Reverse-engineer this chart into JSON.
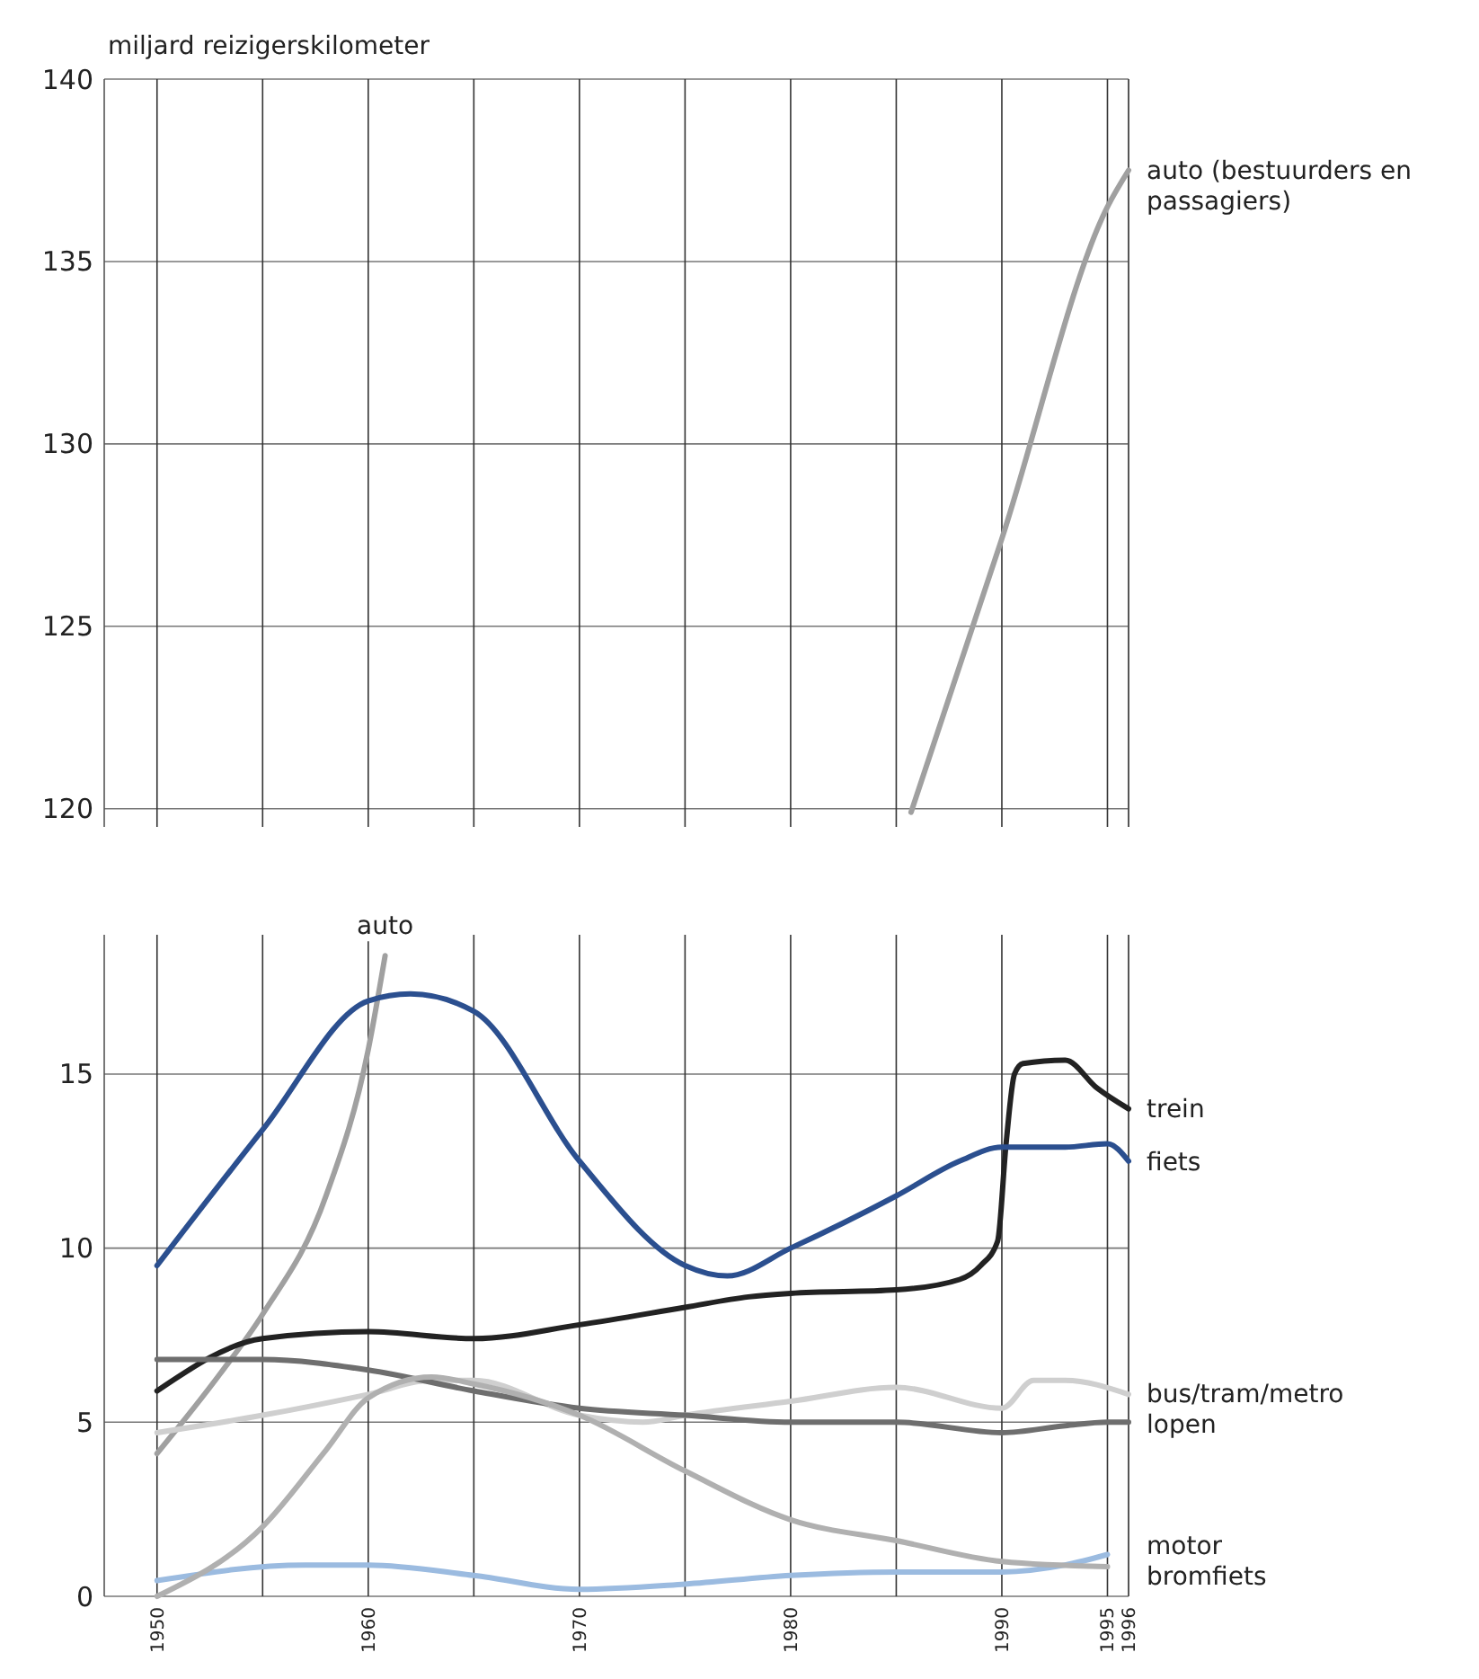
{
  "chart_data": [
    {
      "type": "line",
      "ylabel": "miljard reizigerskilometer",
      "xlim": [
        1947.5,
        1996
      ],
      "ylim": [
        119.5,
        140
      ],
      "yticks": [
        120,
        125,
        130,
        135,
        140
      ],
      "xticks": [
        1950,
        {
          "value": 1955,
          "label": null
        },
        1960,
        {
          "value": 1965,
          "label": null
        },
        1970,
        {
          "value": 1975,
          "label": null
        },
        1980,
        {
          "value": 1985,
          "label": null
        },
        1990,
        1995,
        1996
      ],
      "grid": true,
      "tick_labels": "y",
      "series": [
        {
          "name": "auto (bestuurders en passagiers)",
          "color": "#a0a0a0",
          "x": [
            1985.7,
            1990,
            1995,
            1996
          ],
          "values": [
            119.9,
            127.4,
            136.5,
            137.5
          ]
        }
      ]
    },
    {
      "type": "line",
      "xlim": [
        1947.5,
        1996
      ],
      "ylim": [
        0,
        19
      ],
      "yticks": [
        0,
        5,
        10,
        15
      ],
      "xticks": [
        1950,
        {
          "value": 1955,
          "label": null
        },
        1960,
        {
          "value": 1965,
          "label": null
        },
        1970,
        {
          "value": 1975,
          "label": null
        },
        1980,
        {
          "value": 1985,
          "label": null
        },
        1990,
        1995,
        1996
      ],
      "grid": true,
      "series": [
        {
          "name": "auto",
          "color": "#a0a0a0",
          "x": [
            1950,
            1953,
            1955,
            1958,
            1960,
            1960.8
          ],
          "values": [
            4.1,
            6.4,
            8.1,
            11.5,
            15.7,
            18.4
          ]
        },
        {
          "name": "trein",
          "color": "#222222",
          "x": [
            1950,
            1955,
            1960,
            1965,
            1970,
            1975,
            1978,
            1980,
            1985,
            1988,
            1989,
            1989.8,
            1990.2,
            1990.6,
            1991,
            1993,
            1994.5,
            1996
          ],
          "values": [
            5.9,
            7.4,
            7.6,
            7.4,
            7.8,
            8.3,
            8.6,
            8.7,
            8.8,
            9.1,
            9.5,
            10.2,
            13,
            15,
            15.3,
            15.4,
            14.6,
            14
          ]
        },
        {
          "name": "fiets",
          "color": "#2b4f8f",
          "x": [
            1950,
            1955,
            1960,
            1962,
            1965,
            1970,
            1975,
            1977,
            1980,
            1985,
            1988,
            1990,
            1993,
            1995,
            1996
          ],
          "values": [
            9.5,
            13.4,
            17.1,
            17.3,
            16.8,
            12.5,
            9.5,
            9.2,
            10,
            11.5,
            12.5,
            12.9,
            12.9,
            13,
            12.5
          ]
        },
        {
          "name": "bus/tram/metro",
          "color": "#cfcfcf",
          "x": [
            1950,
            1955,
            1960,
            1963,
            1965,
            1970,
            1973,
            1975,
            1980,
            1985,
            1990,
            1991.5,
            1993,
            1996
          ],
          "values": [
            4.7,
            5.2,
            5.8,
            6.2,
            6.2,
            5.2,
            5,
            5.2,
            5.6,
            6,
            5.4,
            6.2,
            6.2,
            5.8
          ]
        },
        {
          "name": "lopen",
          "color": "#6e6e6e",
          "x": [
            1950,
            1955,
            1960,
            1965,
            1970,
            1975,
            1980,
            1985,
            1990,
            1993,
            1995,
            1996
          ],
          "values": [
            6.8,
            6.8,
            6.5,
            5.9,
            5.4,
            5.2,
            5,
            5,
            4.7,
            4.9,
            5,
            5
          ]
        },
        {
          "name": "motor",
          "color": "#9bbbe0",
          "x": [
            1950,
            1957,
            1960,
            1965,
            1970,
            1975,
            1980,
            1985,
            1990,
            1993,
            1995
          ],
          "values": [
            0.45,
            0.9,
            0.9,
            0.6,
            0.2,
            0.35,
            0.6,
            0.7,
            0.7,
            0.9,
            1.2
          ]
        },
        {
          "name": "bromfiets",
          "color": "#b0b0b0",
          "x": [
            1950,
            1955,
            1958,
            1960,
            1963,
            1965,
            1970,
            1975,
            1980,
            1985,
            1990,
            1995
          ],
          "values": [
            0,
            2,
            4.2,
            5.7,
            6.3,
            6.1,
            5.2,
            3.6,
            2.2,
            1.6,
            1,
            0.85
          ]
        }
      ]
    }
  ]
}
